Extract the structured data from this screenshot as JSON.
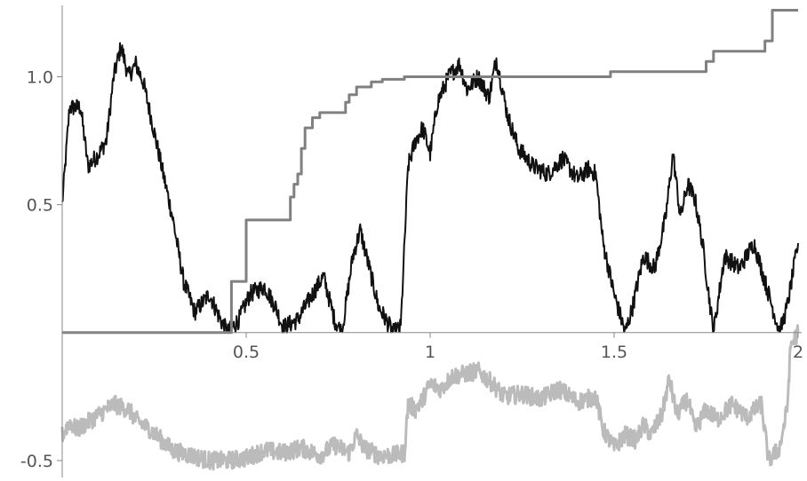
{
  "chart_data": {
    "type": "line",
    "title": "",
    "xlabel": "",
    "ylabel": "",
    "xlim": [
      0,
      2
    ],
    "ylim": [
      -0.58,
      1.3
    ],
    "grid": false,
    "x_ticks": [
      {
        "value": 0.5,
        "label": "0.5"
      },
      {
        "value": 1,
        "label": "1"
      },
      {
        "value": 1.5,
        "label": "1.5"
      },
      {
        "value": 2,
        "label": "2"
      }
    ],
    "y_ticks": [
      {
        "value": -0.5,
        "label": "-0.5"
      },
      {
        "value": 0.5,
        "label": "0.5"
      },
      {
        "value": 1.0,
        "label": "1.0"
      }
    ],
    "series": [
      {
        "color": "#111111",
        "style": "rough",
        "points": [
          [
            0,
            0.5
          ],
          [
            0.02,
            0.88
          ],
          [
            0.05,
            0.88
          ],
          [
            0.07,
            0.65
          ],
          [
            0.1,
            0.7
          ],
          [
            0.12,
            0.75
          ],
          [
            0.14,
            1.0
          ],
          [
            0.16,
            1.12
          ],
          [
            0.18,
            1.0
          ],
          [
            0.2,
            1.05
          ],
          [
            0.22,
            0.98
          ],
          [
            0.24,
            0.85
          ],
          [
            0.27,
            0.65
          ],
          [
            0.3,
            0.45
          ],
          [
            0.33,
            0.2
          ],
          [
            0.36,
            0.08
          ],
          [
            0.4,
            0.15
          ],
          [
            0.43,
            0.05
          ],
          [
            0.45,
            0.0
          ],
          [
            0.48,
            0.05
          ],
          [
            0.51,
            0.15
          ],
          [
            0.55,
            0.18
          ],
          [
            0.58,
            0.1
          ],
          [
            0.6,
            0.02
          ],
          [
            0.64,
            0.05
          ],
          [
            0.68,
            0.15
          ],
          [
            0.71,
            0.22
          ],
          [
            0.74,
            0.05
          ],
          [
            0.76,
            0.0
          ],
          [
            0.79,
            0.3
          ],
          [
            0.81,
            0.4
          ],
          [
            0.83,
            0.28
          ],
          [
            0.86,
            0.1
          ],
          [
            0.88,
            0.05
          ],
          [
            0.9,
            0.0
          ],
          [
            0.92,
            0.02
          ],
          [
            0.94,
            0.65
          ],
          [
            0.96,
            0.75
          ],
          [
            0.98,
            0.8
          ],
          [
            1.0,
            0.7
          ],
          [
            1.02,
            0.9
          ],
          [
            1.05,
            1.0
          ],
          [
            1.08,
            1.05
          ],
          [
            1.1,
            0.95
          ],
          [
            1.13,
            1.0
          ],
          [
            1.16,
            0.92
          ],
          [
            1.18,
            1.07
          ],
          [
            1.21,
            0.85
          ],
          [
            1.24,
            0.72
          ],
          [
            1.28,
            0.65
          ],
          [
            1.32,
            0.62
          ],
          [
            1.36,
            0.68
          ],
          [
            1.4,
            0.6
          ],
          [
            1.43,
            0.64
          ],
          [
            1.45,
            0.62
          ],
          [
            1.47,
            0.35
          ],
          [
            1.5,
            0.15
          ],
          [
            1.53,
            0.0
          ],
          [
            1.55,
            0.1
          ],
          [
            1.58,
            0.3
          ],
          [
            1.61,
            0.25
          ],
          [
            1.64,
            0.45
          ],
          [
            1.66,
            0.7
          ],
          [
            1.68,
            0.45
          ],
          [
            1.7,
            0.58
          ],
          [
            1.72,
            0.52
          ],
          [
            1.74,
            0.35
          ],
          [
            1.77,
            0.0
          ],
          [
            1.8,
            0.3
          ],
          [
            1.84,
            0.25
          ],
          [
            1.88,
            0.35
          ],
          [
            1.92,
            0.15
          ],
          [
            1.95,
            0.0
          ],
          [
            1.97,
            0.1
          ],
          [
            2.0,
            0.35
          ]
        ]
      },
      {
        "color": "#808080",
        "style": "step",
        "points": [
          [
            0,
            0.0
          ],
          [
            0.46,
            0.0
          ],
          [
            0.46,
            0.2
          ],
          [
            0.5,
            0.2
          ],
          [
            0.5,
            0.44
          ],
          [
            0.62,
            0.44
          ],
          [
            0.62,
            0.53
          ],
          [
            0.63,
            0.53
          ],
          [
            0.63,
            0.58
          ],
          [
            0.64,
            0.58
          ],
          [
            0.64,
            0.62
          ],
          [
            0.65,
            0.62
          ],
          [
            0.65,
            0.72
          ],
          [
            0.66,
            0.72
          ],
          [
            0.66,
            0.8
          ],
          [
            0.68,
            0.8
          ],
          [
            0.68,
            0.84
          ],
          [
            0.7,
            0.84
          ],
          [
            0.7,
            0.86
          ],
          [
            0.77,
            0.86
          ],
          [
            0.77,
            0.9
          ],
          [
            0.78,
            0.9
          ],
          [
            0.78,
            0.93
          ],
          [
            0.8,
            0.93
          ],
          [
            0.8,
            0.96
          ],
          [
            0.84,
            0.96
          ],
          [
            0.84,
            0.98
          ],
          [
            0.87,
            0.98
          ],
          [
            0.87,
            0.99
          ],
          [
            0.93,
            0.99
          ],
          [
            0.93,
            1.0
          ],
          [
            1.49,
            1.0
          ],
          [
            1.49,
            1.02
          ],
          [
            1.75,
            1.02
          ],
          [
            1.75,
            1.06
          ],
          [
            1.77,
            1.06
          ],
          [
            1.77,
            1.1
          ],
          [
            1.91,
            1.1
          ],
          [
            1.91,
            1.14
          ],
          [
            1.93,
            1.14
          ],
          [
            1.93,
            1.26
          ],
          [
            2.0,
            1.26
          ]
        ]
      },
      {
        "color": "#bbbbbb",
        "style": "rough",
        "points": [
          [
            0,
            -0.4
          ],
          [
            0.02,
            -0.35
          ],
          [
            0.04,
            -0.38
          ],
          [
            0.07,
            -0.35
          ],
          [
            0.1,
            -0.32
          ],
          [
            0.14,
            -0.28
          ],
          [
            0.18,
            -0.3
          ],
          [
            0.2,
            -0.34
          ],
          [
            0.24,
            -0.38
          ],
          [
            0.27,
            -0.42
          ],
          [
            0.3,
            -0.46
          ],
          [
            0.35,
            -0.48
          ],
          [
            0.4,
            -0.5
          ],
          [
            0.45,
            -0.5
          ],
          [
            0.5,
            -0.49
          ],
          [
            0.55,
            -0.46
          ],
          [
            0.6,
            -0.47
          ],
          [
            0.65,
            -0.45
          ],
          [
            0.7,
            -0.48
          ],
          [
            0.74,
            -0.44
          ],
          [
            0.78,
            -0.47
          ],
          [
            0.8,
            -0.4
          ],
          [
            0.82,
            -0.45
          ],
          [
            0.86,
            -0.48
          ],
          [
            0.9,
            -0.48
          ],
          [
            0.93,
            -0.47
          ],
          [
            0.94,
            -0.28
          ],
          [
            0.96,
            -0.3
          ],
          [
            0.98,
            -0.26
          ],
          [
            1.0,
            -0.2
          ],
          [
            1.03,
            -0.22
          ],
          [
            1.06,
            -0.17
          ],
          [
            1.1,
            -0.16
          ],
          [
            1.13,
            -0.15
          ],
          [
            1.17,
            -0.2
          ],
          [
            1.2,
            -0.25
          ],
          [
            1.25,
            -0.24
          ],
          [
            1.3,
            -0.26
          ],
          [
            1.35,
            -0.22
          ],
          [
            1.4,
            -0.27
          ],
          [
            1.45,
            -0.25
          ],
          [
            1.47,
            -0.38
          ],
          [
            1.5,
            -0.45
          ],
          [
            1.53,
            -0.4
          ],
          [
            1.56,
            -0.42
          ],
          [
            1.58,
            -0.36
          ],
          [
            1.6,
            -0.4
          ],
          [
            1.63,
            -0.32
          ],
          [
            1.65,
            -0.18
          ],
          [
            1.67,
            -0.32
          ],
          [
            1.7,
            -0.26
          ],
          [
            1.72,
            -0.38
          ],
          [
            1.75,
            -0.3
          ],
          [
            1.78,
            -0.34
          ],
          [
            1.82,
            -0.28
          ],
          [
            1.86,
            -0.33
          ],
          [
            1.9,
            -0.28
          ],
          [
            1.92,
            -0.5
          ],
          [
            1.95,
            -0.45
          ],
          [
            1.97,
            -0.3
          ],
          [
            1.98,
            -0.05
          ],
          [
            2.0,
            0.0
          ]
        ]
      }
    ]
  }
}
